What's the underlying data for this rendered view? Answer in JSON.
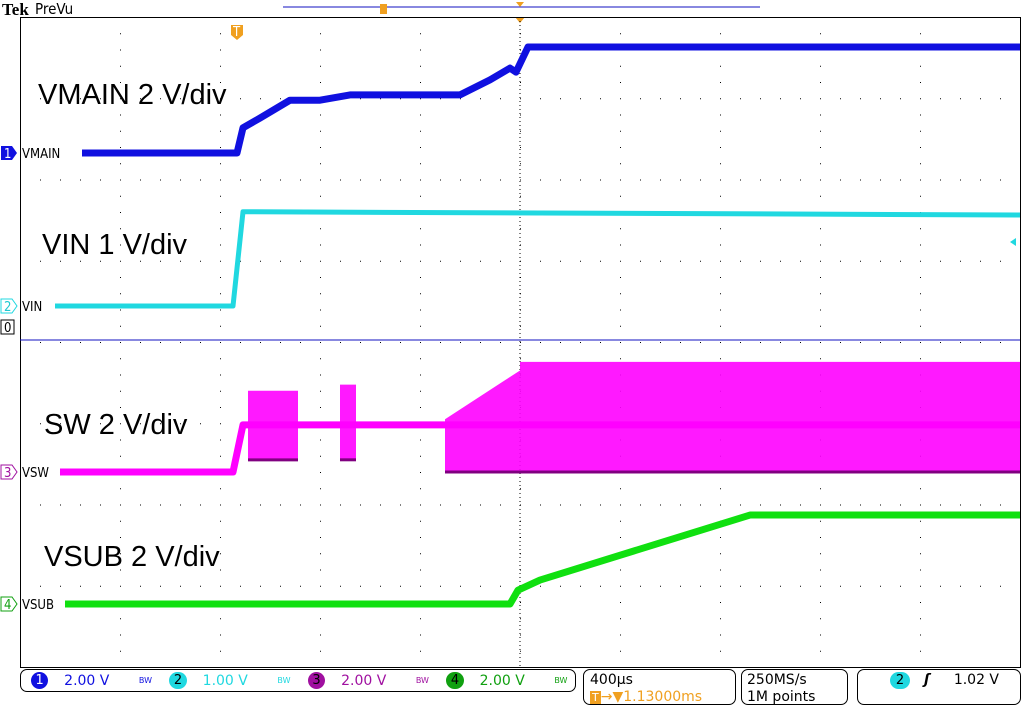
{
  "header": {
    "brand": "Tek",
    "mode": "PreVu"
  },
  "chart_data": {
    "type": "line",
    "title": "",
    "xlabel": "",
    "ylabel": "",
    "grid": true,
    "divisions": {
      "horizontal": 10,
      "vertical": 8
    },
    "time_per_div_ms": 0.4,
    "x_unit": "ms (relative to trigger)",
    "series": [
      {
        "name": "VMAIN",
        "channel": "1",
        "color": "#1010e0",
        "volts_per_div": 2,
        "x": [
          -0.62,
          0.0,
          0.024,
          0.092,
          0.212,
          0.332,
          0.452,
          0.892,
          1.012,
          1.092,
          1.116,
          1.164,
          3.132
        ],
        "y": [
          0,
          0,
          0.62,
          0.86,
          1.3,
          1.3,
          1.43,
          1.43,
          1.8,
          2.09,
          1.99,
          2.61,
          2.61
        ]
      },
      {
        "name": "VIN",
        "channel": "2",
        "color": "#20d8e0",
        "volts_per_div": 1,
        "x": [
          -0.728,
          -0.016,
          0.024,
          3.132
        ],
        "y": [
          0,
          0,
          1.16,
          1.12
        ]
      },
      {
        "name": "SW",
        "channel": "3",
        "color": "#ff00ff",
        "volts_per_div": 2,
        "x": [
          -0.708,
          -0.016,
          0.024,
          3.132
        ],
        "y": [
          0,
          0,
          1.16,
          1.16
        ],
        "switching_envelope": [
          {
            "x_start": 0.044,
            "x_end": 0.244,
            "upper": 2.0,
            "lower": 0.3
          },
          {
            "x_start": 0.412,
            "x_end": 0.476,
            "upper": 2.15,
            "lower": 0.3
          },
          {
            "x_start": 0.832,
            "x_end": 1.132,
            "upper_start": 1.3,
            "upper_end": 2.5,
            "lower": 0
          },
          {
            "x_start": 1.132,
            "x_end": 3.132,
            "upper": 2.71,
            "lower": 0
          }
        ]
      },
      {
        "name": "VSUB",
        "channel": "4",
        "color": "#10e010",
        "volts_per_div": 2,
        "x": [
          -0.688,
          1.092,
          1.124,
          1.212,
          2.052,
          3.132
        ],
        "y": [
          0,
          0,
          0.34,
          0.59,
          2.19,
          2.19
        ]
      }
    ],
    "annotations": [
      "VMAIN 2 V/div",
      "VIN 1 V/div",
      "SW 2 V/div",
      "VSUB 2 V/div"
    ]
  },
  "trace_labels": {
    "ch1": "VMAIN",
    "ch2": "VIN",
    "ch3": "VSW",
    "ch4": "VSUB"
  },
  "markers": {
    "ch1": "1",
    "ch2": "2",
    "ch3": "3",
    "ch4": "4",
    "zero": "0",
    "trigger": "T"
  },
  "status": {
    "channels": [
      {
        "num": "1",
        "scale": "2.00 V",
        "bw": "BW",
        "color": "#1010e0"
      },
      {
        "num": "2",
        "scale": "1.00 V",
        "bw": "BW",
        "color": "#20d8e0"
      },
      {
        "num": "3",
        "scale": "2.00 V",
        "bw": "BW",
        "color": "#a010a0"
      },
      {
        "num": "4",
        "scale": "2.00 V",
        "bw": "BW",
        "color": "#10a010"
      }
    ],
    "timebase": "400µs",
    "position": "▼1.13000ms",
    "sample_rate": "250MS/s",
    "record_length": "1M points",
    "trigger_source": "2",
    "trigger_slope_icon": "rising-edge-icon",
    "trigger_level": "1.02 V"
  }
}
